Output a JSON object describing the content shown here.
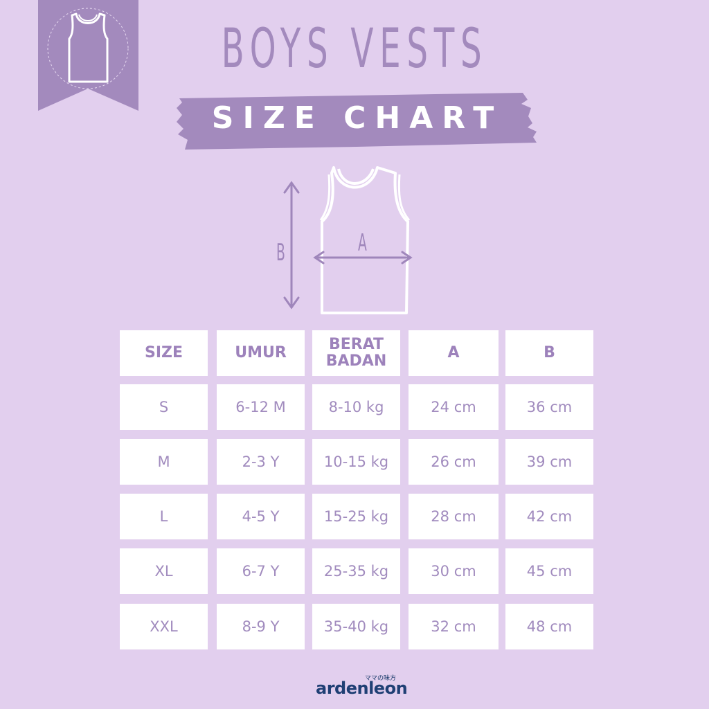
{
  "header": {
    "title": "BOYS VESTS",
    "subtitle": "SIZE CHART"
  },
  "diagram": {
    "label_a": "A",
    "label_b": "B"
  },
  "table": {
    "headers": [
      "SIZE",
      "UMUR",
      "BERAT BADAN",
      "A",
      "B"
    ],
    "rows": [
      [
        "S",
        "6-12 M",
        "8-10 kg",
        "24 cm",
        "36 cm"
      ],
      [
        "M",
        "2-3 Y",
        "10-15 kg",
        "26 cm",
        "39 cm"
      ],
      [
        "L",
        "4-5 Y",
        "15-25 kg",
        "28 cm",
        "42 cm"
      ],
      [
        "XL",
        "6-7 Y",
        "25-35 kg",
        "30 cm",
        "45 cm"
      ],
      [
        "XXL",
        "8-9 Y",
        "35-40 kg",
        "32 cm",
        "48 cm"
      ]
    ]
  },
  "brand": {
    "name": "ardenleon",
    "tagline": "ママの味方"
  },
  "colors": {
    "background": "#e2cfee",
    "accent": "#a38abd",
    "text_header": "#9d82bb",
    "brand": "#1f3f74"
  }
}
